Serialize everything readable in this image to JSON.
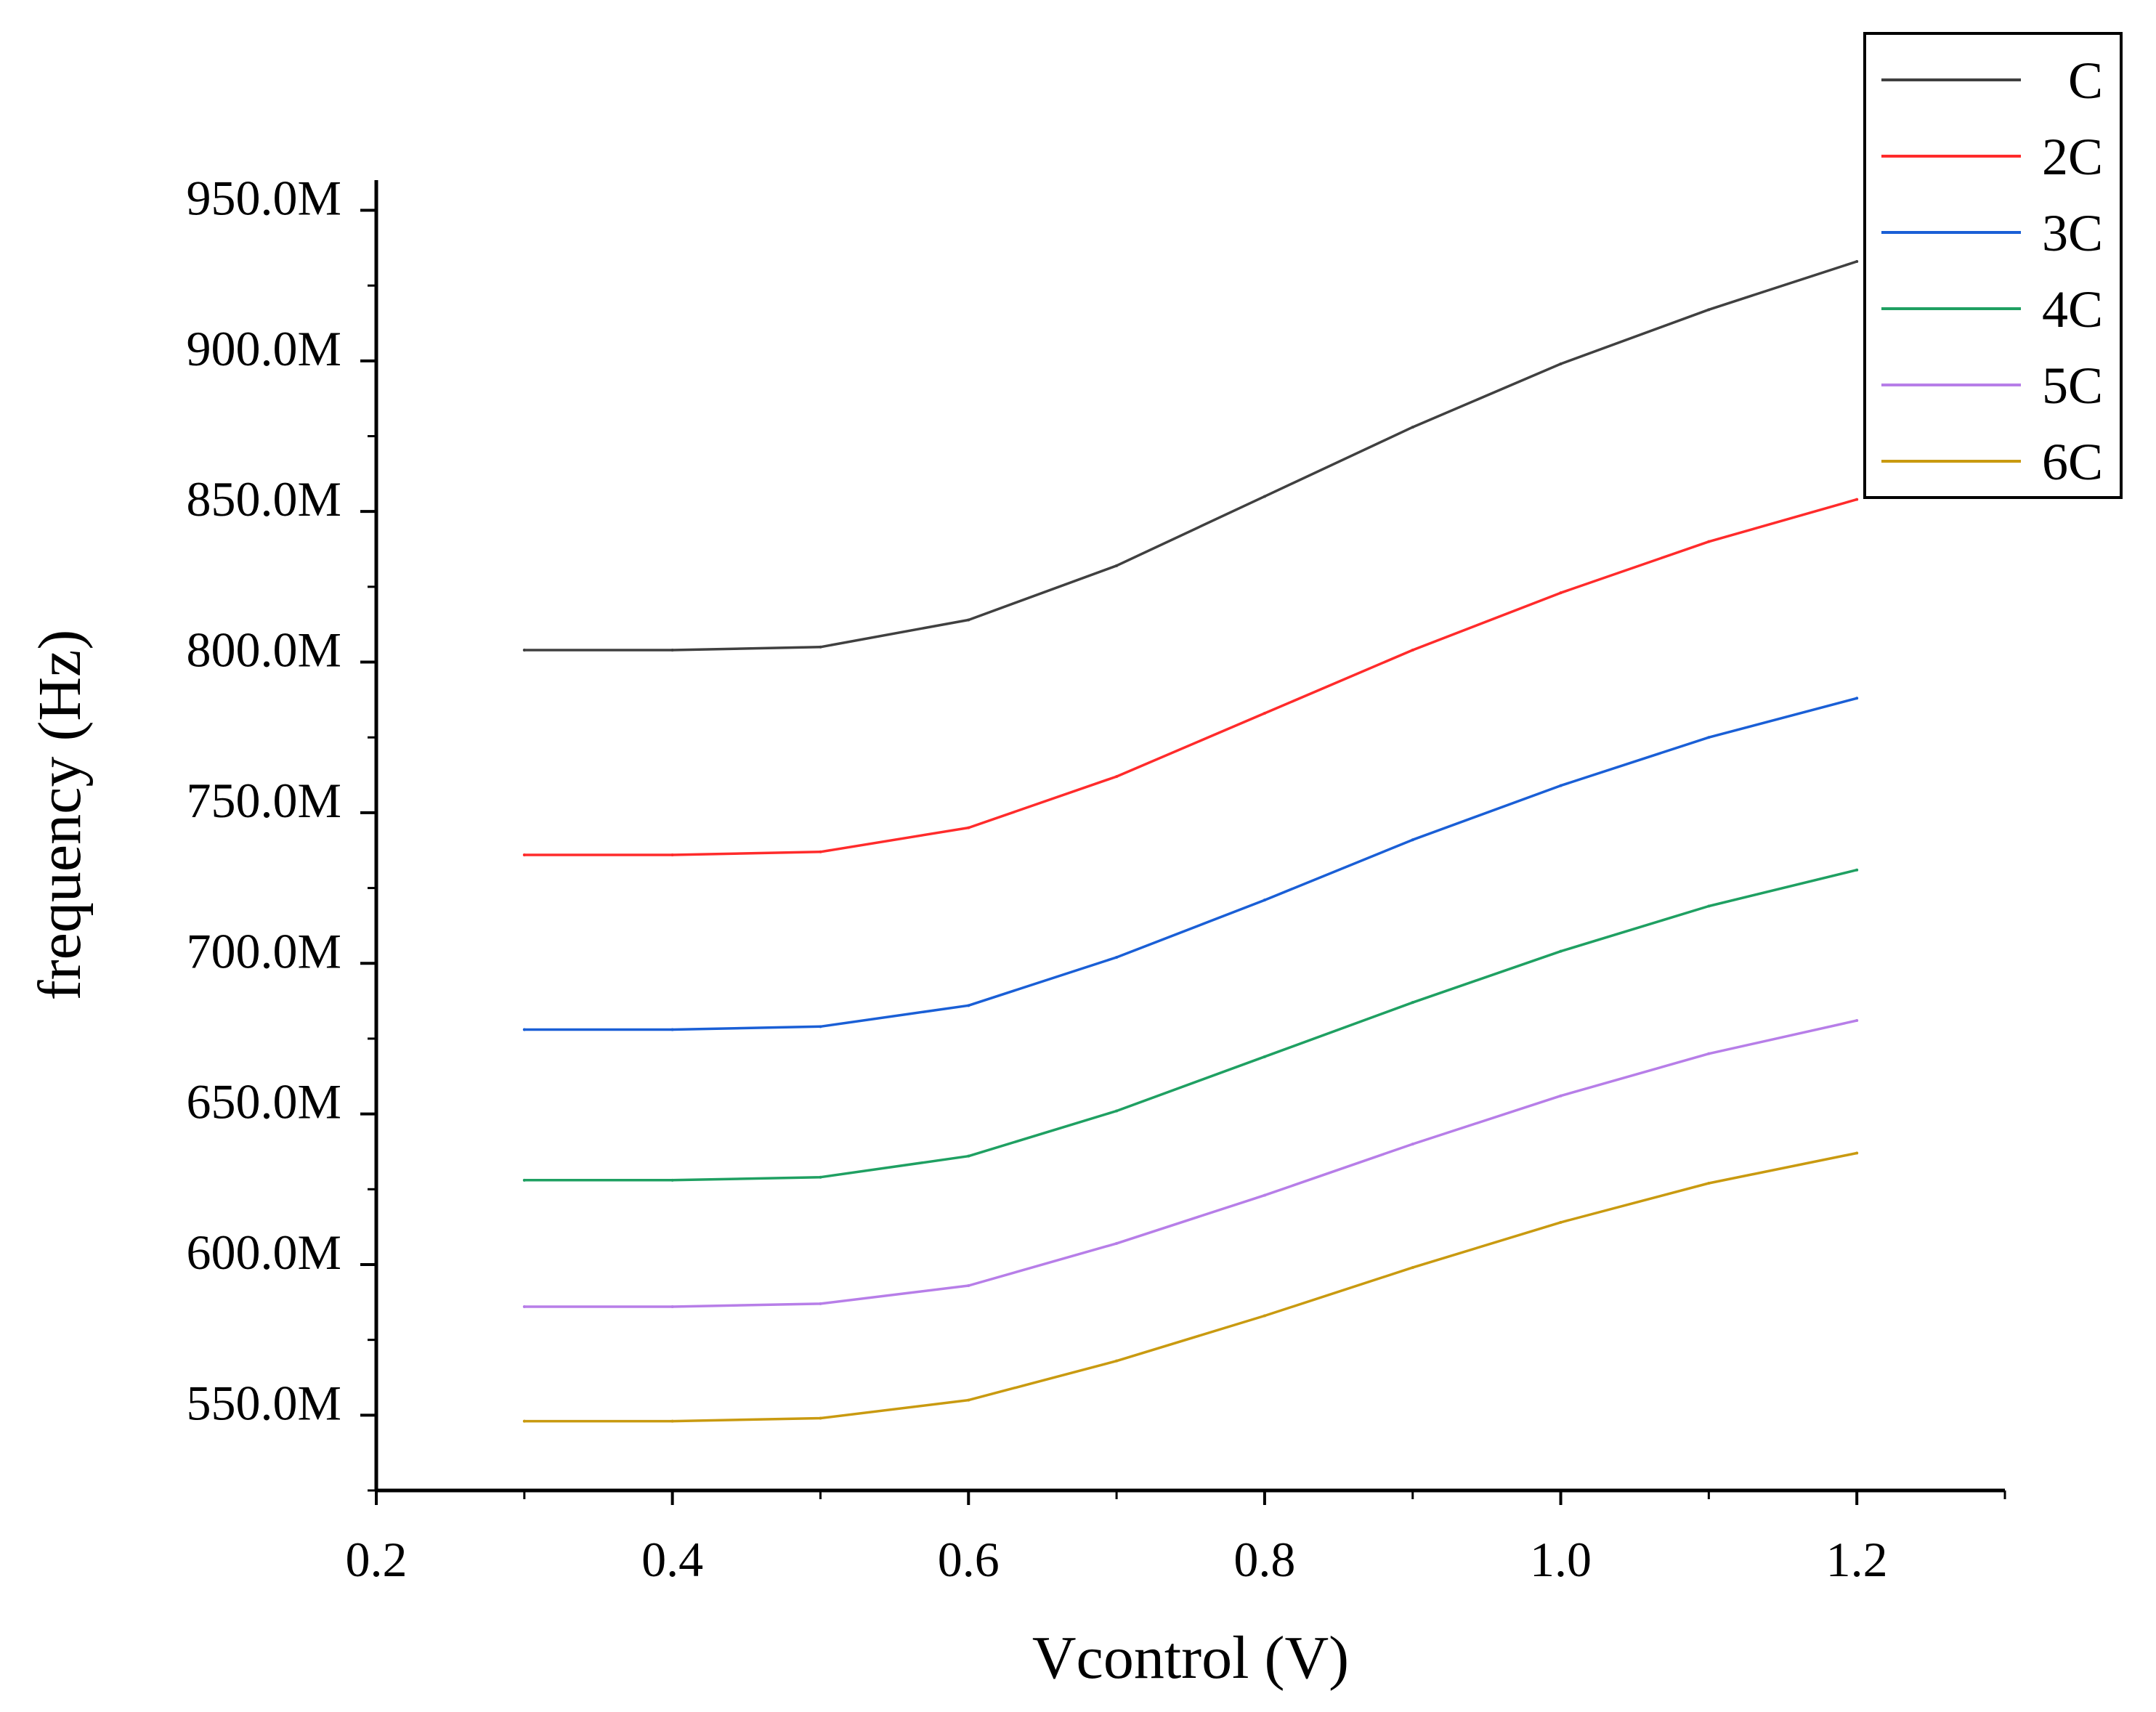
{
  "chart_data": {
    "type": "line",
    "title": "",
    "xlabel": "Vcontrol (V)",
    "ylabel": "frequency (Hz)",
    "xlim": [
      0.2,
      1.3
    ],
    "ylim": [
      525000000,
      960000000
    ],
    "x_ticks": [
      {
        "value": 0.2,
        "label": "0.2"
      },
      {
        "value": 0.4,
        "label": "0.4"
      },
      {
        "value": 0.6,
        "label": "0.6"
      },
      {
        "value": 0.8,
        "label": "0.8"
      },
      {
        "value": 1.0,
        "label": "1.0"
      },
      {
        "value": 1.2,
        "label": "1.2"
      }
    ],
    "y_ticks": [
      {
        "value": 550000000,
        "label": "550.0M"
      },
      {
        "value": 600000000,
        "label": "600.0M"
      },
      {
        "value": 650000000,
        "label": "650.0M"
      },
      {
        "value": 700000000,
        "label": "700.0M"
      },
      {
        "value": 750000000,
        "label": "750.0M"
      },
      {
        "value": 800000000,
        "label": "800.0M"
      },
      {
        "value": 850000000,
        "label": "850.0M"
      },
      {
        "value": 900000000,
        "label": "900.0M"
      },
      {
        "value": 950000000,
        "label": "950.0M"
      }
    ],
    "x": [
      0.3,
      0.4,
      0.5,
      0.6,
      0.7,
      0.8,
      0.9,
      1.0,
      1.1,
      1.2
    ],
    "series": [
      {
        "name": "C",
        "color": "#404040",
        "values": [
          804000000,
          804000000,
          805000000,
          814000000,
          832000000,
          855000000,
          878000000,
          899000000,
          917000000,
          933000000
        ]
      },
      {
        "name": "2C",
        "color": "#ff2b2b",
        "values": [
          736000000,
          736000000,
          737000000,
          745000000,
          762000000,
          783000000,
          804000000,
          823000000,
          840000000,
          854000000
        ]
      },
      {
        "name": "3C",
        "color": "#1a5fd6",
        "values": [
          678000000,
          678000000,
          679000000,
          686000000,
          702000000,
          721000000,
          741000000,
          759000000,
          775000000,
          788000000
        ]
      },
      {
        "name": "4C",
        "color": "#1fa062",
        "values": [
          628000000,
          628000000,
          629000000,
          636000000,
          651000000,
          669000000,
          687000000,
          704000000,
          719000000,
          731000000
        ]
      },
      {
        "name": "5C",
        "color": "#b77ee8",
        "values": [
          586000000,
          586000000,
          587000000,
          593000000,
          607000000,
          623000000,
          640000000,
          656000000,
          670000000,
          681000000
        ]
      },
      {
        "name": "6C",
        "color": "#c99a10",
        "values": [
          548000000,
          548000000,
          549000000,
          555000000,
          568000000,
          583000000,
          599000000,
          614000000,
          627000000,
          637000000
        ]
      }
    ],
    "legend": {
      "position": "top-right"
    }
  }
}
